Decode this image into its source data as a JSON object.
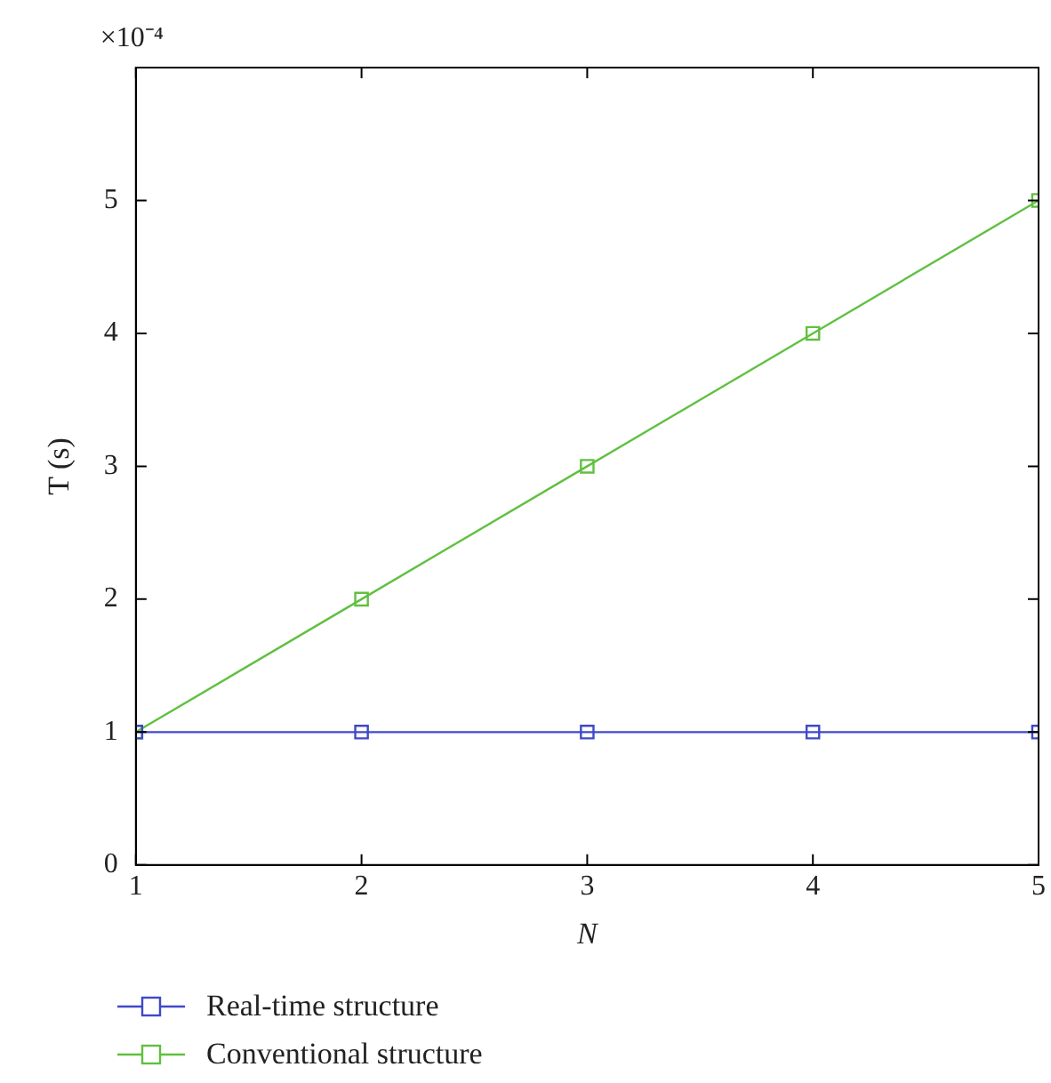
{
  "chart_data": {
    "type": "line",
    "xlabel": "N",
    "ylabel": "T (s)",
    "annotations": [
      "×10⁻⁴"
    ],
    "x": [
      1,
      2,
      3,
      4,
      5
    ],
    "xlim": [
      1,
      5
    ],
    "xticks": [
      1,
      2,
      3,
      4,
      5
    ],
    "ylim": [
      0,
      6
    ],
    "yticks": [
      0,
      1,
      2,
      3,
      4,
      5
    ],
    "series": [
      {
        "name": "Real-time structure",
        "color": "#3f48c8",
        "values": [
          1,
          1,
          1,
          1,
          1
        ]
      },
      {
        "name": "Conventional structure",
        "color": "#60c040",
        "values": [
          1,
          2,
          3,
          4,
          5
        ]
      }
    ],
    "marker": "square",
    "line_style": "solid",
    "grid": false,
    "legend": "bottom"
  }
}
